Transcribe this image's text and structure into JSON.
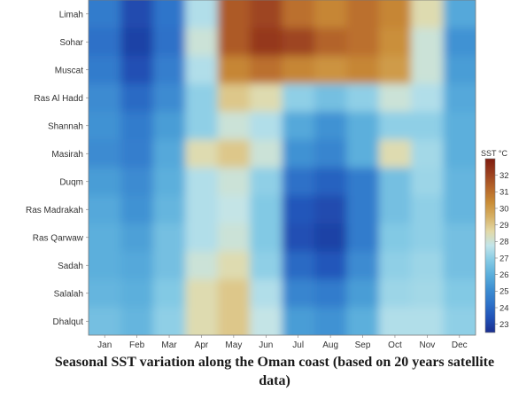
{
  "chart_data": {
    "type": "heatmap",
    "title": "",
    "caption": "Seasonal SST variation along the Oman coast (based on 20 years satellite data)",
    "xlabel": "",
    "ylabel": "",
    "x_categories": [
      "Jan",
      "Feb",
      "Mar",
      "Apr",
      "May",
      "Jun",
      "Jul",
      "Aug",
      "Sep",
      "Oct",
      "Nov",
      "Dec"
    ],
    "y_categories": [
      "Limah",
      "Sohar",
      "Muscat",
      "Ras Al Hadd",
      "Shannah",
      "Masirah",
      "Duqm",
      "Ras Madrakah",
      "Ras Qarwaw",
      "Sadah",
      "Salalah",
      "Dhalqut"
    ],
    "values": [
      [
        24.5,
        23.2,
        24.3,
        27.5,
        31.5,
        32.0,
        31.0,
        30.5,
        31.0,
        30.5,
        28.5,
        25.8
      ],
      [
        24.2,
        23.0,
        24.2,
        28.0,
        31.5,
        32.3,
        32.0,
        31.3,
        31.0,
        30.3,
        28.0,
        25.2
      ],
      [
        24.5,
        23.3,
        24.6,
        27.5,
        30.5,
        31.0,
        30.5,
        30.2,
        30.5,
        30.0,
        28.0,
        25.5
      ],
      [
        25.0,
        24.0,
        25.0,
        27.0,
        29.0,
        28.5,
        27.0,
        26.5,
        27.0,
        28.0,
        27.5,
        25.8
      ],
      [
        25.2,
        24.5,
        25.5,
        27.0,
        28.0,
        27.5,
        25.8,
        25.2,
        26.0,
        27.0,
        27.0,
        26.0
      ],
      [
        25.0,
        24.6,
        25.8,
        28.5,
        29.0,
        28.0,
        25.2,
        24.8,
        26.0,
        28.5,
        27.3,
        26.0
      ],
      [
        25.5,
        25.0,
        26.0,
        27.5,
        28.0,
        27.0,
        24.2,
        23.8,
        24.5,
        26.5,
        27.2,
        26.2
      ],
      [
        25.8,
        25.2,
        26.2,
        27.5,
        27.8,
        26.8,
        23.5,
        23.2,
        24.5,
        26.5,
        27.0,
        26.2
      ],
      [
        26.0,
        25.6,
        26.5,
        27.5,
        28.0,
        26.8,
        23.3,
        23.0,
        24.5,
        26.8,
        27.0,
        26.5
      ],
      [
        26.0,
        25.8,
        26.5,
        28.0,
        28.5,
        27.0,
        24.0,
        23.5,
        25.0,
        27.0,
        27.2,
        26.5
      ],
      [
        26.2,
        26.0,
        26.8,
        28.5,
        29.0,
        27.5,
        24.8,
        24.5,
        25.5,
        27.2,
        27.3,
        26.8
      ],
      [
        26.5,
        26.2,
        27.0,
        28.5,
        29.0,
        27.8,
        25.5,
        25.2,
        26.0,
        27.5,
        27.5,
        27.0
      ]
    ],
    "colorbar": {
      "title": "SST °C",
      "range": [
        22.5,
        33
      ],
      "ticks": [
        23,
        24,
        25,
        26,
        27,
        28,
        29,
        30,
        31,
        32
      ],
      "colors": [
        "#1b2f8f",
        "#2152b7",
        "#2e73c9",
        "#3e8fd2",
        "#5bafdc",
        "#86cbe5",
        "#c2e5ea",
        "#e3d9a6",
        "#d6b064",
        "#c98c36",
        "#b5652a",
        "#9a3f1f",
        "#7f1d10"
      ]
    }
  }
}
